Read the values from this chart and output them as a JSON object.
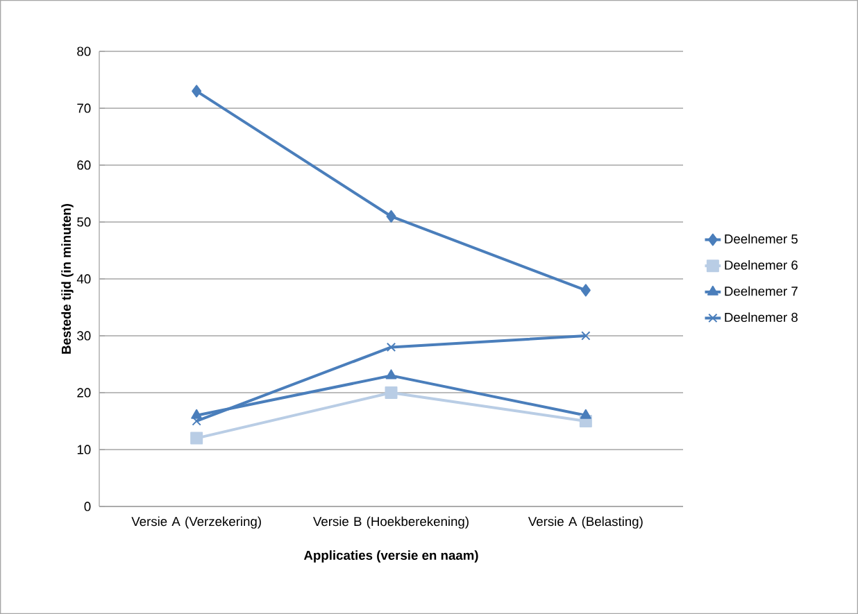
{
  "chart_data": {
    "type": "line",
    "xlabel": "Applicaties (versie en naam)",
    "ylabel": "Bestede tijd (in minuten)",
    "categories": [
      "Versie A (Verzekering)",
      "Versie B (Hoekberekening)",
      "Versie A (Belasting)"
    ],
    "series": [
      {
        "name": "Deelnemer 5",
        "color": "#4a7ebb",
        "marker": "diamond",
        "values": [
          73,
          51,
          38
        ]
      },
      {
        "name": "Deelnemer 6",
        "color": "#b9cde5",
        "marker": "square",
        "values": [
          12,
          20,
          15
        ]
      },
      {
        "name": "Deelnemer 7",
        "color": "#4a7ebb",
        "marker": "triangle",
        "values": [
          16,
          23,
          16
        ]
      },
      {
        "name": "Deelnemer 8",
        "color": "#4a7ebb",
        "marker": "cross",
        "values": [
          15,
          28,
          30
        ]
      }
    ],
    "ylim": [
      0,
      80
    ],
    "yticks": [
      0,
      10,
      20,
      30,
      40,
      50,
      60,
      70,
      80
    ],
    "grid": "y",
    "legend": "right",
    "line_style": "solid"
  }
}
